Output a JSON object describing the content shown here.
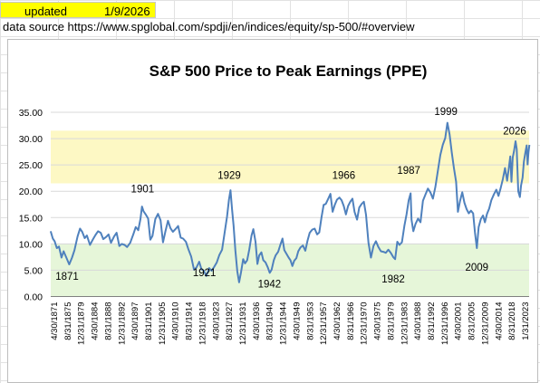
{
  "sheet": {
    "updated_label": "updated",
    "updated_date": "1/9/2026",
    "source_text": "data source https://www.spglobal.com/spdji/en/indices/equity/sp-500/#overview",
    "updated_fill_color": "#ffff00"
  },
  "chart_data": {
    "type": "line",
    "title": "S&P 500 Price to Peak Earnings  (PPE)",
    "series_color": "#4f81bd",
    "bands": [
      {
        "from": 0,
        "to": 10,
        "color": "#e6f6d9"
      },
      {
        "from": 21.5,
        "to": 31.5,
        "color": "#fdf8c4"
      }
    ],
    "ylim": [
      0,
      35
    ],
    "yticks": [
      "0.00",
      "5.00",
      "10.00",
      "15.00",
      "20.00",
      "25.00",
      "30.00",
      "35.00"
    ],
    "xlim": [
      1871.33,
      2025.9
    ],
    "xticks": [
      "4/30/1871",
      "8/31/1875",
      "12/31/1879",
      "4/30/1884",
      "8/31/1888",
      "12/31/1892",
      "4/30/1897",
      "8/31/1901",
      "12/31/1905",
      "4/30/1910",
      "8/31/1914",
      "12/31/1918",
      "4/30/1923",
      "8/31/1927",
      "12/31/1931",
      "4/30/1936",
      "8/31/1940",
      "12/31/1944",
      "4/30/1949",
      "8/31/1953",
      "12/31/1957",
      "4/30/1962",
      "8/31/1966",
      "12/31/1970",
      "4/30/1975",
      "8/31/1979",
      "12/31/1983",
      "4/30/1988",
      "8/31/1992",
      "12/31/1996",
      "4/30/2001",
      "8/31/2005",
      "12/31/2009",
      "4/30/2014",
      "8/31/2018",
      "1/31/2023"
    ],
    "annotations": [
      {
        "text": "1871",
        "x": 1871,
        "y": 3.2
      },
      {
        "text": "1901",
        "x": 1901,
        "y": 19.8
      },
      {
        "text": "1921",
        "x": 1921,
        "y": 3.9
      },
      {
        "text": "1929",
        "x": 1929,
        "y": 22.4
      },
      {
        "text": "1942",
        "x": 1942,
        "y": 1.7
      },
      {
        "text": "1966",
        "x": 1966,
        "y": 22.4
      },
      {
        "text": "1982",
        "x": 1982,
        "y": 2.7
      },
      {
        "text": "1987",
        "x": 1987,
        "y": 23.3
      },
      {
        "text": "1999",
        "x": 1999,
        "y": 34.5
      },
      {
        "text": "2009",
        "x": 2009,
        "y": 4.9
      },
      {
        "text": "2026",
        "x": 2026,
        "y": 30.8
      }
    ],
    "points": [
      [
        1871.3,
        12.4
      ],
      [
        1872,
        11.0
      ],
      [
        1872.6,
        10.5
      ],
      [
        1873.3,
        9.2
      ],
      [
        1874,
        9.5
      ],
      [
        1874.8,
        7.4
      ],
      [
        1875.5,
        8.6
      ],
      [
        1876.5,
        7.2
      ],
      [
        1877.3,
        6.1
      ],
      [
        1878.2,
        7.4
      ],
      [
        1879,
        8.8
      ],
      [
        1880,
        11.4
      ],
      [
        1880.8,
        12.9
      ],
      [
        1881.5,
        12.3
      ],
      [
        1882.3,
        11.1
      ],
      [
        1883,
        11.6
      ],
      [
        1884,
        9.8
      ],
      [
        1885,
        10.9
      ],
      [
        1885.8,
        11.7
      ],
      [
        1886.6,
        12.4
      ],
      [
        1887.5,
        12.1
      ],
      [
        1888.3,
        10.9
      ],
      [
        1889.2,
        11.3
      ],
      [
        1890,
        11.8
      ],
      [
        1890.8,
        10.2
      ],
      [
        1891.8,
        11.4
      ],
      [
        1892.6,
        12.1
      ],
      [
        1893.5,
        9.6
      ],
      [
        1894.3,
        10.0
      ],
      [
        1895.2,
        9.8
      ],
      [
        1896,
        9.4
      ],
      [
        1897,
        10.2
      ],
      [
        1898,
        11.8
      ],
      [
        1898.8,
        13.2
      ],
      [
        1899.6,
        12.6
      ],
      [
        1900.3,
        14.7
      ],
      [
        1900.8,
        17.1
      ],
      [
        1901.3,
        16.2
      ],
      [
        1902,
        15.6
      ],
      [
        1902.8,
        14.8
      ],
      [
        1903.5,
        10.8
      ],
      [
        1904.2,
        11.5
      ],
      [
        1905.1,
        14.7
      ],
      [
        1906,
        15.7
      ],
      [
        1906.8,
        14.5
      ],
      [
        1907.6,
        10.3
      ],
      [
        1908.4,
        12.4
      ],
      [
        1909.2,
        14.4
      ],
      [
        1910,
        13.0
      ],
      [
        1910.8,
        12.3
      ],
      [
        1911.6,
        12.8
      ],
      [
        1912.5,
        13.4
      ],
      [
        1913.3,
        11.2
      ],
      [
        1914.1,
        11.0
      ],
      [
        1915,
        10.4
      ],
      [
        1915.8,
        9.0
      ],
      [
        1916.7,
        7.6
      ],
      [
        1917.6,
        5.1
      ],
      [
        1918.4,
        5.5
      ],
      [
        1919.3,
        6.6
      ],
      [
        1920,
        5.2
      ],
      [
        1920.8,
        4.9
      ],
      [
        1921.6,
        3.9
      ],
      [
        1922.5,
        5.4
      ],
      [
        1923.3,
        4.9
      ],
      [
        1924.1,
        5.6
      ],
      [
        1925,
        6.5
      ],
      [
        1925.8,
        7.9
      ],
      [
        1926.7,
        8.9
      ],
      [
        1927.5,
        12.1
      ],
      [
        1928.3,
        15.2
      ],
      [
        1928.9,
        18.4
      ],
      [
        1929.4,
        20.2
      ],
      [
        1929.9,
        16.6
      ],
      [
        1930.4,
        13.5
      ],
      [
        1931,
        8.7
      ],
      [
        1931.6,
        4.8
      ],
      [
        1932.2,
        2.7
      ],
      [
        1932.8,
        4.6
      ],
      [
        1933.5,
        7.1
      ],
      [
        1934.1,
        6.3
      ],
      [
        1934.8,
        6.9
      ],
      [
        1935.5,
        9.0
      ],
      [
        1936.2,
        11.6
      ],
      [
        1936.8,
        12.8
      ],
      [
        1937.5,
        10.4
      ],
      [
        1938.1,
        6.2
      ],
      [
        1938.7,
        7.8
      ],
      [
        1939.4,
        8.4
      ],
      [
        1940,
        6.9
      ],
      [
        1940.7,
        6.5
      ],
      [
        1941.4,
        5.6
      ],
      [
        1942.1,
        4.5
      ],
      [
        1942.7,
        5.1
      ],
      [
        1943.4,
        6.9
      ],
      [
        1944,
        7.8
      ],
      [
        1944.8,
        8.5
      ],
      [
        1945.5,
        9.8
      ],
      [
        1946.2,
        11.0
      ],
      [
        1946.8,
        8.8
      ],
      [
        1947.5,
        8.1
      ],
      [
        1948.2,
        7.4
      ],
      [
        1948.8,
        6.9
      ],
      [
        1949.4,
        5.8
      ],
      [
        1950,
        6.8
      ],
      [
        1950.7,
        7.3
      ],
      [
        1951.3,
        8.6
      ],
      [
        1952,
        9.3
      ],
      [
        1952.8,
        9.7
      ],
      [
        1953.6,
        8.7
      ],
      [
        1954.3,
        10.6
      ],
      [
        1955,
        12.1
      ],
      [
        1955.8,
        12.7
      ],
      [
        1956.6,
        12.9
      ],
      [
        1957.4,
        11.8
      ],
      [
        1958.1,
        12.2
      ],
      [
        1958.8,
        15.0
      ],
      [
        1959.5,
        17.4
      ],
      [
        1960.2,
        17.6
      ],
      [
        1961,
        18.6
      ],
      [
        1961.7,
        19.5
      ],
      [
        1962.4,
        16.1
      ],
      [
        1963.1,
        17.4
      ],
      [
        1963.8,
        18.4
      ],
      [
        1964.6,
        18.8
      ],
      [
        1965.3,
        18.3
      ],
      [
        1966,
        17.2
      ],
      [
        1966.7,
        15.6
      ],
      [
        1967.4,
        17.2
      ],
      [
        1968.1,
        18.0
      ],
      [
        1968.8,
        18.6
      ],
      [
        1969.5,
        16.1
      ],
      [
        1970.3,
        14.6
      ],
      [
        1971,
        16.9
      ],
      [
        1971.8,
        17.6
      ],
      [
        1972.5,
        18.0
      ],
      [
        1973.2,
        15.5
      ],
      [
        1974,
        10.2
      ],
      [
        1974.8,
        7.4
      ],
      [
        1975.6,
        9.6
      ],
      [
        1976.4,
        10.5
      ],
      [
        1977.2,
        9.4
      ],
      [
        1978,
        8.6
      ],
      [
        1978.8,
        8.5
      ],
      [
        1979.6,
        8.3
      ],
      [
        1980.4,
        8.9
      ],
      [
        1981.2,
        8.3
      ],
      [
        1982,
        7.5
      ],
      [
        1982.6,
        7.1
      ],
      [
        1983.3,
        10.4
      ],
      [
        1984,
        9.8
      ],
      [
        1984.8,
        10.3
      ],
      [
        1985.6,
        13.4
      ],
      [
        1986.3,
        15.6
      ],
      [
        1987,
        18.3
      ],
      [
        1987.6,
        19.6
      ],
      [
        1987.9,
        14.6
      ],
      [
        1988.5,
        12.4
      ],
      [
        1989.2,
        13.8
      ],
      [
        1990,
        14.8
      ],
      [
        1990.8,
        14.1
      ],
      [
        1991.6,
        18.2
      ],
      [
        1992.4,
        19.4
      ],
      [
        1993.2,
        20.5
      ],
      [
        1994,
        19.8
      ],
      [
        1994.8,
        18.6
      ],
      [
        1995.6,
        20.8
      ],
      [
        1996.4,
        23.8
      ],
      [
        1997.2,
        26.9
      ],
      [
        1998,
        28.8
      ],
      [
        1998.8,
        30.1
      ],
      [
        1999.5,
        33.0
      ],
      [
        2000.2,
        30.8
      ],
      [
        2000.9,
        27.4
      ],
      [
        2001.6,
        24.4
      ],
      [
        2002.3,
        21.8
      ],
      [
        2002.9,
        16.1
      ],
      [
        2003.6,
        18.2
      ],
      [
        2004.3,
        19.8
      ],
      [
        2005,
        17.8
      ],
      [
        2005.7,
        16.6
      ],
      [
        2006.4,
        15.8
      ],
      [
        2007.1,
        16.3
      ],
      [
        2007.8,
        15.8
      ],
      [
        2008.4,
        12.2
      ],
      [
        2009,
        9.2
      ],
      [
        2009.6,
        13.2
      ],
      [
        2010.3,
        14.7
      ],
      [
        2011,
        15.4
      ],
      [
        2011.6,
        14.1
      ],
      [
        2012.3,
        15.7
      ],
      [
        2013,
        16.7
      ],
      [
        2013.7,
        18.3
      ],
      [
        2014.5,
        19.4
      ],
      [
        2015.3,
        20.3
      ],
      [
        2016,
        19.1
      ],
      [
        2016.7,
        20.6
      ],
      [
        2017.4,
        22.3
      ],
      [
        2018.1,
        24.4
      ],
      [
        2018.8,
        22.0
      ],
      [
        2019.3,
        24.3
      ],
      [
        2019.8,
        26.6
      ],
      [
        2020.2,
        21.8
      ],
      [
        2020.6,
        26.4
      ],
      [
        2021,
        27.6
      ],
      [
        2021.5,
        29.5
      ],
      [
        2021.9,
        28.0
      ],
      [
        2022.4,
        20.0
      ],
      [
        2022.9,
        18.9
      ],
      [
        2023.3,
        21.1
      ],
      [
        2023.8,
        22.6
      ],
      [
        2024.2,
        25.6
      ],
      [
        2024.7,
        27.4
      ],
      [
        2025.1,
        28.7
      ],
      [
        2025.4,
        25.1
      ],
      [
        2025.7,
        27.4
      ],
      [
        2026,
        28.8
      ]
    ]
  }
}
